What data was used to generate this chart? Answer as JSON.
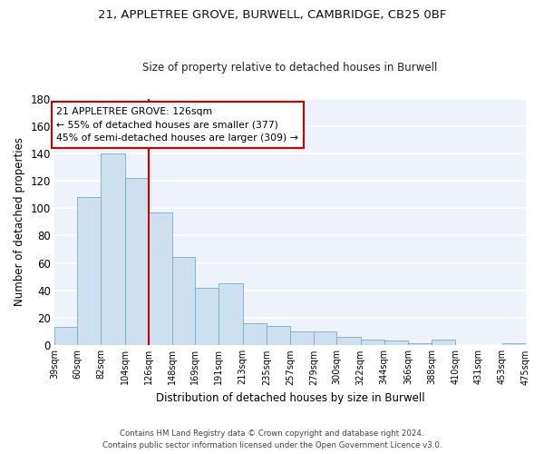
{
  "title": "21, APPLETREE GROVE, BURWELL, CAMBRIDGE, CB25 0BF",
  "subtitle": "Size of property relative to detached houses in Burwell",
  "xlabel": "Distribution of detached houses by size in Burwell",
  "ylabel": "Number of detached properties",
  "bar_color": "#cce0f0",
  "bar_edge_color": "#7aaac8",
  "background_color": "#eef2fb",
  "grid_color": "#ffffff",
  "vline_x": 126,
  "vline_color": "#cc0000",
  "bins": [
    39,
    60,
    82,
    104,
    126,
    148,
    169,
    191,
    213,
    235,
    257,
    279,
    300,
    322,
    344,
    366,
    388,
    410,
    431,
    453,
    475
  ],
  "counts": [
    13,
    108,
    140,
    122,
    97,
    64,
    42,
    45,
    16,
    14,
    10,
    10,
    6,
    4,
    3,
    1,
    4,
    0,
    0,
    1
  ],
  "annotation_title": "21 APPLETREE GROVE: 126sqm",
  "annotation_line1": "← 55% of detached houses are smaller (377)",
  "annotation_line2": "45% of semi-detached houses are larger (309) →",
  "annotation_box_color": "#ffffff",
  "annotation_box_edge": "#cc0000",
  "ylim": [
    0,
    180
  ],
  "yticks": [
    0,
    20,
    40,
    60,
    80,
    100,
    120,
    140,
    160,
    180
  ],
  "tick_labels": [
    "39sqm",
    "60sqm",
    "82sqm",
    "104sqm",
    "126sqm",
    "148sqm",
    "169sqm",
    "191sqm",
    "213sqm",
    "235sqm",
    "257sqm",
    "279sqm",
    "300sqm",
    "322sqm",
    "344sqm",
    "366sqm",
    "388sqm",
    "410sqm",
    "431sqm",
    "453sqm",
    "475sqm"
  ],
  "footer_line1": "Contains HM Land Registry data © Crown copyright and database right 2024.",
  "footer_line2": "Contains public sector information licensed under the Open Government Licence v3.0."
}
